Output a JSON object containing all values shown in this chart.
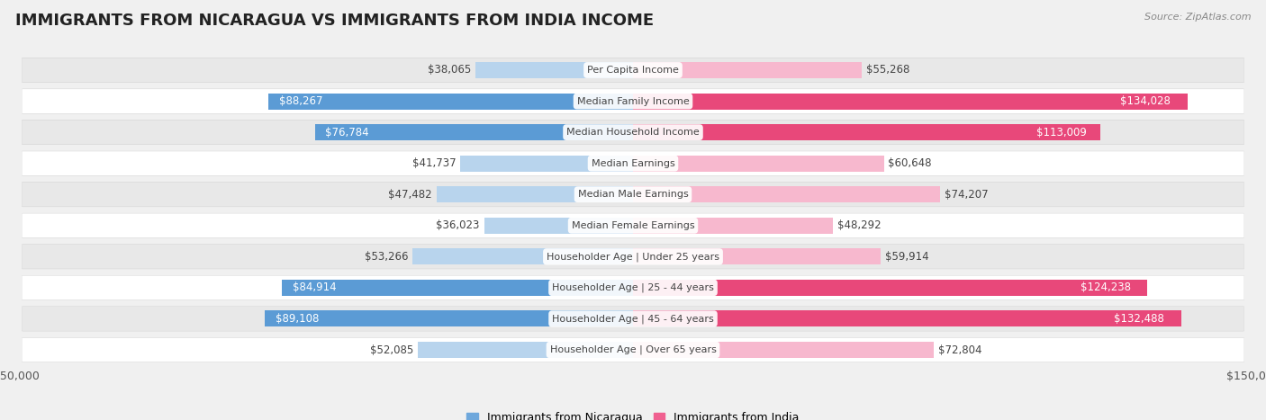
{
  "title": "IMMIGRANTS FROM NICARAGUA VS IMMIGRANTS FROM INDIA INCOME",
  "source": "Source: ZipAtlas.com",
  "categories": [
    "Per Capita Income",
    "Median Family Income",
    "Median Household Income",
    "Median Earnings",
    "Median Male Earnings",
    "Median Female Earnings",
    "Householder Age | Under 25 years",
    "Householder Age | 25 - 44 years",
    "Householder Age | 45 - 64 years",
    "Householder Age | Over 65 years"
  ],
  "nicaragua_values": [
    38065,
    88267,
    76784,
    41737,
    47482,
    36023,
    53266,
    84914,
    89108,
    52085
  ],
  "india_values": [
    55268,
    134028,
    113009,
    60648,
    74207,
    48292,
    59914,
    124238,
    132488,
    72804
  ],
  "nicaragua_color_light": "#b8d4ed",
  "nicaragua_color_dark": "#5b9bd5",
  "india_color_light": "#f7b8ce",
  "india_color_dark": "#e8487a",
  "nicaragua_color_legend": "#6fa8dc",
  "india_color_legend": "#f06090",
  "nicaragua_label": "Immigrants from Nicaragua",
  "india_label": "Immigrants from India",
  "max_value": 150000,
  "nicaragua_dark_threshold": 60000,
  "india_dark_threshold": 80000,
  "background_color": "#f0f0f0",
  "row_bg_color": "#e8e8e8",
  "row_bg_white": "#ffffff",
  "title_fontsize": 13,
  "value_fontsize": 8.5,
  "category_fontsize": 8,
  "axis_label_fontsize": 9
}
